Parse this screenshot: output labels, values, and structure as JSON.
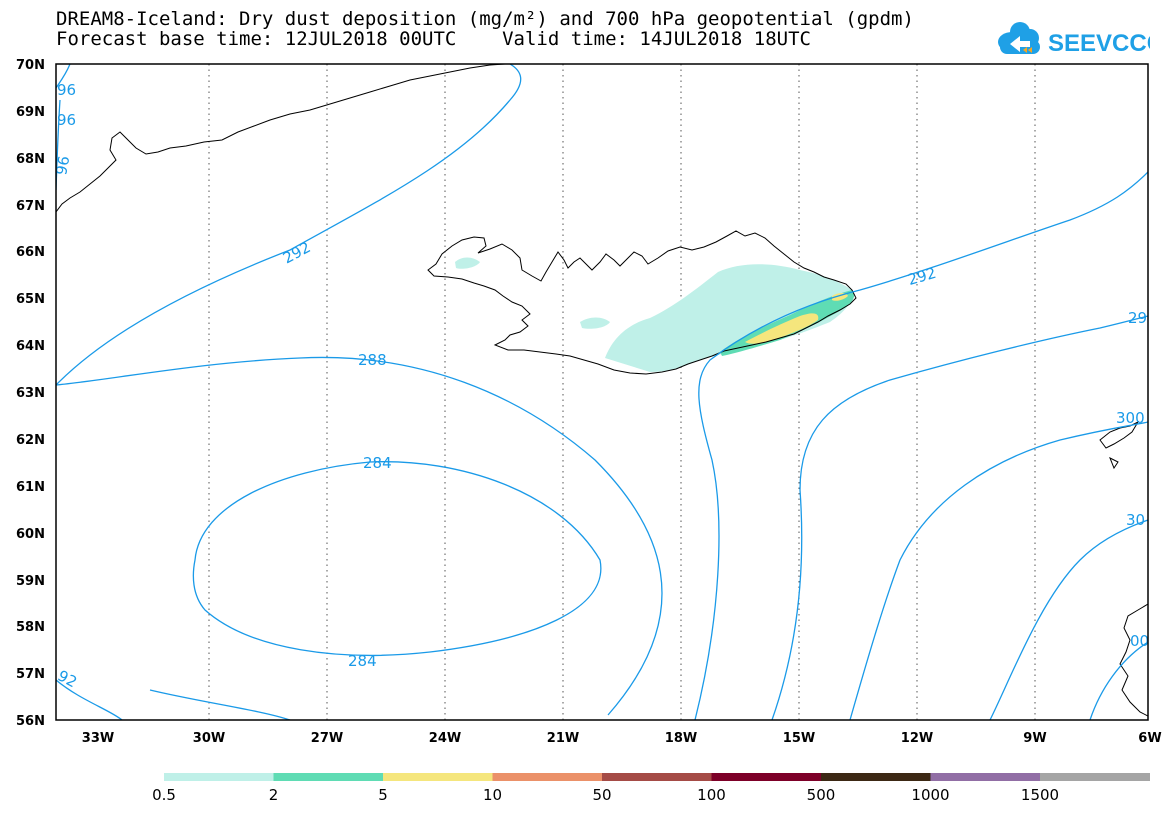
{
  "header": {
    "line1": "DREAM8-Iceland: Dry dust deposition (mg/m²) and 700 hPa geopotential (gpdm)",
    "line2": "Forecast base time: 12JUL2018 00UTC    Valid time: 14JUL2018 18UTC"
  },
  "logo": {
    "text": "SEEVCCC",
    "color": "#1fa0e6"
  },
  "axes": {
    "lat_labels": [
      "70N",
      "69N",
      "68N",
      "67N",
      "66N",
      "65N",
      "64N",
      "63N",
      "62N",
      "61N",
      "60N",
      "59N",
      "58N",
      "57N",
      "56N"
    ],
    "lon_labels": [
      "33W",
      "30W",
      "27W",
      "24W",
      "21W",
      "18W",
      "15W",
      "12W",
      "9W",
      "6W"
    ]
  },
  "contours": {
    "color": "#1a9ae8",
    "labels": [
      "292",
      "288",
      "284",
      "284",
      "292",
      "96",
      "96",
      "96",
      "92",
      "29",
      "300",
      "30",
      "00"
    ]
  },
  "legend": {
    "colors": [
      "#bff0e8",
      "#5fdcb4",
      "#f5e67d",
      "#eb9169",
      "#a54b46",
      "#7d0028",
      "#3c2814",
      "#916ea5",
      "#a5a5a5"
    ],
    "labels": [
      "0.5",
      "2",
      "5",
      "10",
      "50",
      "100",
      "500",
      "1000",
      "1500"
    ]
  }
}
